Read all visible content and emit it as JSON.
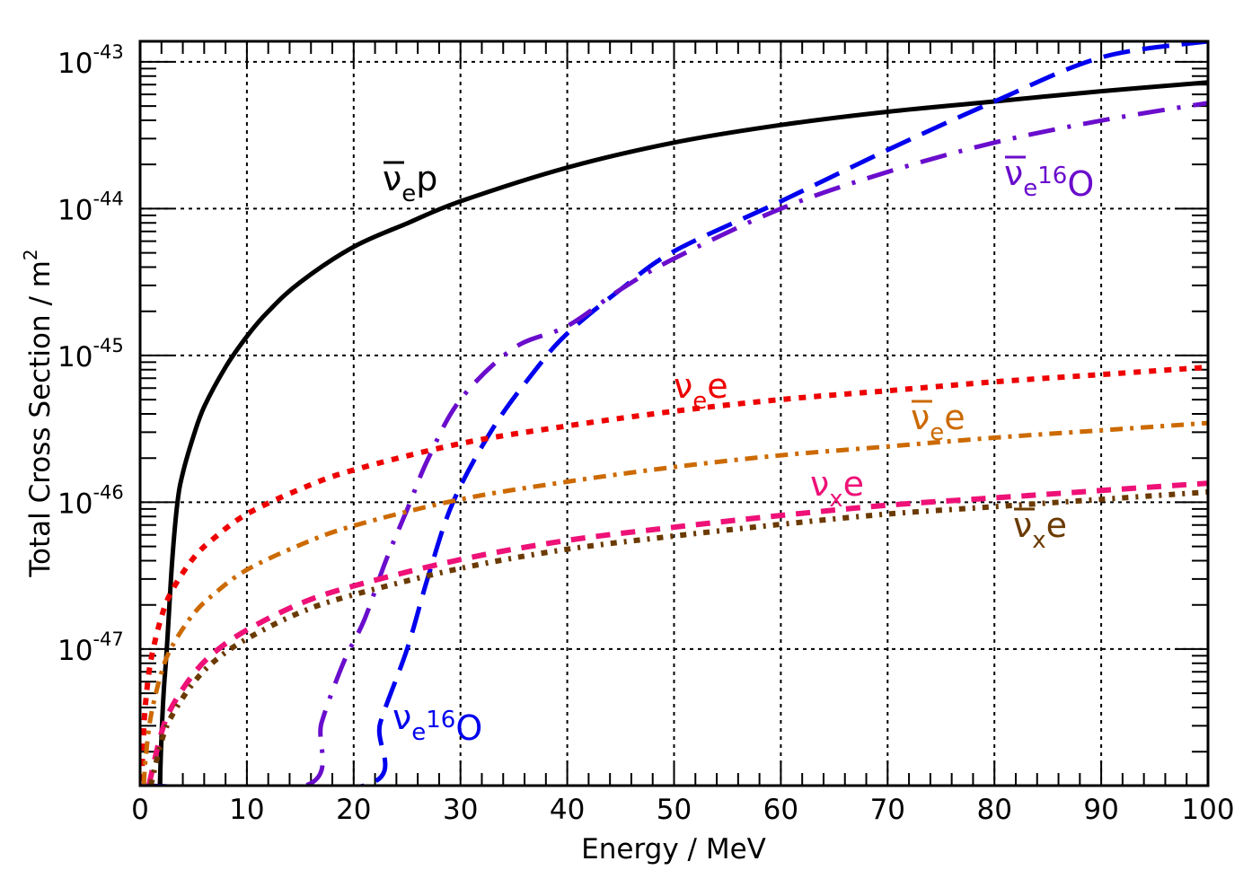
{
  "chart_data": {
    "type": "line",
    "title": "",
    "xlabel": "Energy / MeV",
    "ylabel": "Total Cross Section / m",
    "ylabel_superscript": "2",
    "xlim": [
      0,
      100
    ],
    "ylim_log10": [
      -47.93,
      -42.86
    ],
    "yscale": "log",
    "grid": true,
    "x_ticks": [
      "0",
      "10",
      "20",
      "30",
      "40",
      "50",
      "60",
      "70",
      "80",
      "90",
      "100"
    ],
    "x_tick_values": [
      0,
      10,
      20,
      30,
      40,
      50,
      60,
      70,
      80,
      90,
      100
    ],
    "y_ticks": [
      {
        "base": "10",
        "exp": "-43",
        "value_log10": -43
      },
      {
        "base": "10",
        "exp": "-44",
        "value_log10": -44
      },
      {
        "base": "10",
        "exp": "-45",
        "value_log10": -45
      },
      {
        "base": "10",
        "exp": "-46",
        "value_log10": -46
      },
      {
        "base": "10",
        "exp": "-47",
        "value_log10": -47
      }
    ],
    "series": [
      {
        "name": "anti-nu_e p",
        "label_main": "ν",
        "label_sub": "e",
        "label_tail": "p",
        "label_bar": true,
        "label_sup": "",
        "color": "#000000",
        "style": "solid",
        "x": [
          1.85,
          2,
          2.2,
          2.5,
          3,
          3.5,
          4,
          5,
          6,
          8,
          10,
          12,
          15,
          20,
          25,
          30,
          40,
          50,
          60,
          70,
          80,
          90,
          100
        ],
        "log10_y": [
          -47.93,
          -47.6,
          -47.3,
          -47.0,
          -46.4,
          -46.0,
          -45.8,
          -45.55,
          -45.35,
          -45.08,
          -44.87,
          -44.7,
          -44.5,
          -44.26,
          -44.1,
          -43.95,
          -43.72,
          -43.55,
          -43.43,
          -43.34,
          -43.27,
          -43.2,
          -43.14
        ]
      },
      {
        "name": "nu_e 16O",
        "label_main": "ν",
        "label_sub": "e",
        "label_tail": "O",
        "label_bar": false,
        "label_sup": "16",
        "color": "#0000ee",
        "style": "longdash",
        "x": [
          0,
          21,
          22.5,
          25,
          27,
          29.3,
          33,
          37,
          40,
          45,
          50,
          60,
          70,
          80,
          90,
          100
        ],
        "log10_y": [
          -47.93,
          -47.93,
          -47.5,
          -47.0,
          -46.5,
          -46.0,
          -45.5,
          -45.1,
          -44.85,
          -44.55,
          -44.29,
          -43.95,
          -43.6,
          -43.27,
          -42.97,
          -42.86
        ]
      },
      {
        "name": "anti-nu_e 16O",
        "label_main": "ν",
        "label_sub": "e",
        "label_tail": "O",
        "label_bar": true,
        "label_sup": "16",
        "color": "#6a0dcc",
        "style": "dashdot",
        "x": [
          0,
          15.5,
          17,
          19,
          21,
          23,
          25,
          27,
          30,
          35,
          40,
          45,
          50,
          60,
          70,
          80,
          90,
          100
        ],
        "log10_y": [
          -47.93,
          -47.93,
          -47.5,
          -47.1,
          -46.8,
          -46.4,
          -46.05,
          -45.7,
          -45.3,
          -44.95,
          -44.8,
          -44.55,
          -44.34,
          -44.0,
          -43.75,
          -43.55,
          -43.4,
          -43.28
        ]
      },
      {
        "name": "nu_e e",
        "label_main": "ν",
        "label_sub": "e",
        "label_tail": "e",
        "label_bar": false,
        "label_sup": "",
        "color": "#ee0000",
        "style": "dotted",
        "x": [
          0.15,
          0.3,
          0.5,
          1,
          2,
          3,
          5,
          7,
          10,
          15,
          20,
          30,
          40,
          50,
          60,
          70,
          80,
          90,
          100
        ],
        "log10_y": [
          -47.9,
          -47.6,
          -47.38,
          -47.08,
          -46.78,
          -46.6,
          -46.38,
          -46.24,
          -46.08,
          -45.91,
          -45.78,
          -45.6,
          -45.48,
          -45.38,
          -45.3,
          -45.24,
          -45.18,
          -45.13,
          -45.08
        ]
      },
      {
        "name": "anti-nu_e e",
        "label_main": "ν",
        "label_sub": "e",
        "label_tail": "e",
        "label_bar": true,
        "label_sup": "",
        "color": "#cc6a00",
        "style": "dashdotdot",
        "x": [
          0.35,
          0.5,
          1,
          2,
          3,
          5,
          7,
          10,
          15,
          20,
          30,
          40,
          50,
          60,
          70,
          80,
          90,
          100
        ],
        "log10_y": [
          -47.92,
          -47.76,
          -47.46,
          -47.16,
          -46.98,
          -46.76,
          -46.62,
          -46.46,
          -46.29,
          -46.16,
          -45.98,
          -45.86,
          -45.76,
          -45.68,
          -45.62,
          -45.56,
          -45.51,
          -45.46
        ]
      },
      {
        "name": "nu_x e",
        "label_main": "ν",
        "label_sub": "x",
        "label_tail": "e",
        "label_bar": false,
        "label_sup": "",
        "color": "#ee1177",
        "style": "dashed",
        "x": [
          0.9,
          1,
          2,
          3,
          5,
          7,
          10,
          15,
          20,
          30,
          40,
          50,
          60,
          70,
          80,
          90,
          100
        ],
        "log10_y": [
          -47.92,
          -47.87,
          -47.57,
          -47.39,
          -47.17,
          -47.02,
          -46.87,
          -46.69,
          -46.57,
          -46.39,
          -46.26,
          -46.17,
          -46.09,
          -46.02,
          -45.97,
          -45.92,
          -45.87
        ]
      },
      {
        "name": "anti-nu_x e",
        "label_main": "ν",
        "label_sub": "x",
        "label_tail": "e",
        "label_bar": true,
        "label_sup": "",
        "color": "#6b3a00",
        "style": "densedot",
        "x": [
          1.0,
          2,
          3,
          5,
          7,
          10,
          15,
          20,
          30,
          40,
          50,
          60,
          70,
          80,
          90,
          100
        ],
        "log10_y": [
          -47.93,
          -47.63,
          -47.45,
          -47.23,
          -47.08,
          -46.93,
          -46.75,
          -46.63,
          -46.45,
          -46.32,
          -46.23,
          -46.15,
          -46.08,
          -46.03,
          -45.98,
          -45.93
        ]
      }
    ]
  }
}
